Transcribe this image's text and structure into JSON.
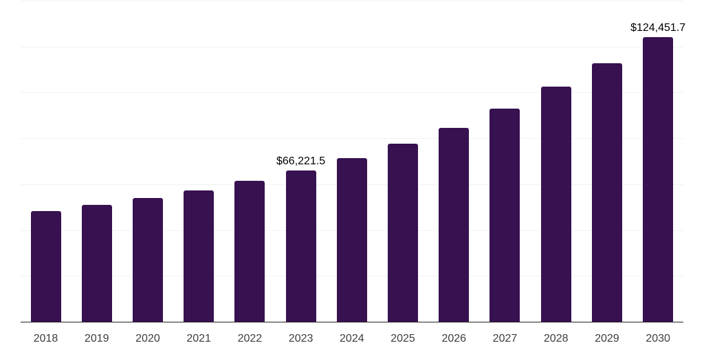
{
  "chart_data": {
    "type": "bar",
    "title": "",
    "xlabel": "",
    "ylabel": "",
    "categories": [
      "2018",
      "2019",
      "2020",
      "2021",
      "2022",
      "2023",
      "2024",
      "2025",
      "2026",
      "2027",
      "2028",
      "2029",
      "2030"
    ],
    "values": [
      48500,
      51300,
      54300,
      57600,
      61800,
      66221.5,
      71700,
      78000,
      84800,
      93200,
      102800,
      113000,
      124451.7
    ],
    "data_labels": [
      {
        "index": 5,
        "text": "$66,221.5"
      },
      {
        "index": 12,
        "text": "$124,451.7"
      }
    ],
    "ylim": [
      0,
      140000
    ],
    "gridline_interval": 20000,
    "grid": "horizontal",
    "legend_position": "none",
    "colors": {
      "bar": "#371150",
      "gridline": "#f2f2f2",
      "axis_line": "#222222",
      "tick_label": "#3d3d3d",
      "data_label": "#000000",
      "background": "#ffffff"
    }
  }
}
